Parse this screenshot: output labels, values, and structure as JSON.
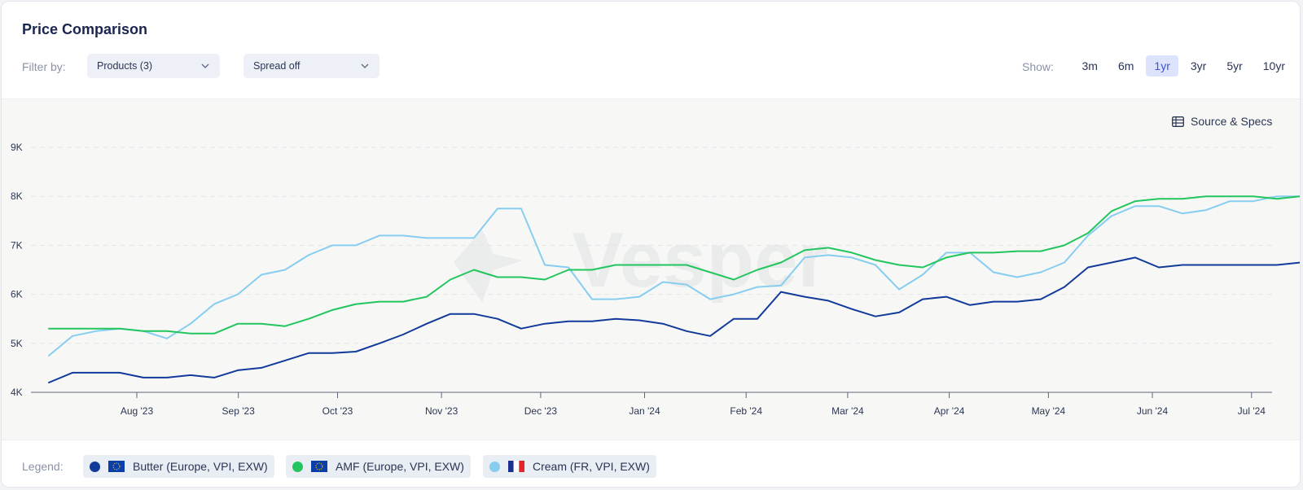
{
  "title": "Price Comparison",
  "filters": {
    "label": "Filter by:",
    "products": "Products (3)",
    "spread": "Spread off"
  },
  "show": {
    "label": "Show:",
    "ranges": [
      "3m",
      "6m",
      "1yr",
      "3yr",
      "5yr",
      "10yr"
    ],
    "active": "1yr"
  },
  "source_label": "Source & Specs",
  "watermark": "Vesper",
  "legend": {
    "label": "Legend:",
    "items": [
      {
        "label": "Butter (Europe, VPI, EXW)",
        "color": "#123a9a",
        "flag": "eu"
      },
      {
        "label": "AMF (Europe, VPI, EXW)",
        "color": "#22c55e",
        "flag": "eu"
      },
      {
        "label": "Cream (FR, VPI, EXW)",
        "color": "#87cdf0",
        "flag": "fr"
      }
    ]
  },
  "colors": {
    "butter": "#123a9a",
    "amf": "#22c55e",
    "cream": "#87cdf0",
    "active_range": "#3a56d4"
  },
  "chart_data": {
    "type": "line",
    "x_index_start": 0,
    "x_ticks": [
      {
        "label": "Aug '23",
        "index": 2
      },
      {
        "label": "Sep '23",
        "index": 6.3
      },
      {
        "label": "Oct '23",
        "index": 10.5
      },
      {
        "label": "Nov '23",
        "index": 14.9
      },
      {
        "label": "Dec '23",
        "index": 19.1
      },
      {
        "label": "Jan '24",
        "index": 23.5
      },
      {
        "label": "Feb '24",
        "index": 27.8
      },
      {
        "label": "Mar '24",
        "index": 32.1
      },
      {
        "label": "Apr '24",
        "index": 36.4
      },
      {
        "label": "May '24",
        "index": 40.6
      },
      {
        "label": "Jun '24",
        "index": 45
      },
      {
        "label": "Jul '24",
        "index": 49.2
      }
    ],
    "y_ticks": [
      4000,
      5000,
      6000,
      7000,
      8000,
      9000
    ],
    "y_tick_labels": [
      "4K",
      "5K",
      "6K",
      "7K",
      "8K",
      "9K"
    ],
    "ylim": [
      4000,
      9000
    ],
    "grid": "horizontal dashed",
    "series": [
      {
        "name": "Butter (Europe, VPI, EXW)",
        "key": "butter",
        "values": [
          4200,
          4400,
          4400,
          4400,
          4300,
          4300,
          4350,
          4300,
          4450,
          4500,
          4650,
          4800,
          4800,
          4830,
          5000,
          5180,
          5400,
          5600,
          5600,
          5500,
          5300,
          5400,
          5450,
          5450,
          5500,
          5470,
          5400,
          5250,
          5150,
          5500,
          5500,
          6050,
          5950,
          5870,
          5700,
          5550,
          5630,
          5900,
          5950,
          5780,
          5850,
          5850,
          5900,
          6150,
          6550,
          6650,
          6750,
          6550,
          6600,
          6600,
          6600,
          6600,
          6600,
          6650
        ]
      },
      {
        "name": "AMF (Europe, VPI, EXW)",
        "key": "amf",
        "values": [
          5300,
          5300,
          5300,
          5300,
          5250,
          5250,
          5200,
          5200,
          5400,
          5400,
          5350,
          5500,
          5680,
          5800,
          5850,
          5850,
          5950,
          6300,
          6500,
          6350,
          6350,
          6300,
          6500,
          6500,
          6600,
          6600,
          6600,
          6600,
          6450,
          6300,
          6500,
          6650,
          6900,
          6950,
          6850,
          6700,
          6600,
          6550,
          6750,
          6850,
          6850,
          6880,
          6880,
          7000,
          7250,
          7700,
          7900,
          7950,
          7950,
          8000,
          8000,
          8000,
          7950,
          8000
        ]
      },
      {
        "name": "Cream (FR, VPI, EXW)",
        "key": "cream",
        "values": [
          4750,
          5150,
          5250,
          5300,
          5250,
          5100,
          5400,
          5800,
          6000,
          6400,
          6500,
          6800,
          7000,
          7000,
          7200,
          7200,
          7150,
          7150,
          7150,
          7750,
          7750,
          6600,
          6550,
          5900,
          5900,
          5950,
          6250,
          6200,
          5900,
          6000,
          6150,
          6180,
          6750,
          6800,
          6750,
          6600,
          6100,
          6400,
          6850,
          6850,
          6450,
          6350,
          6450,
          6650,
          7200,
          7600,
          7800,
          7800,
          7650,
          7720,
          7900,
          7900,
          8000,
          8000
        ]
      }
    ]
  }
}
